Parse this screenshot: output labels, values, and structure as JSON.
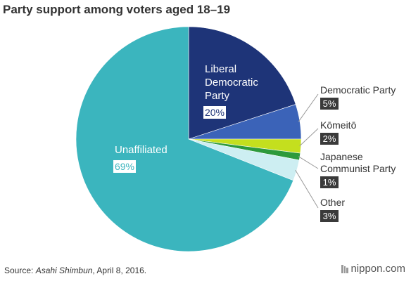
{
  "title": "Party support among voters aged 18–19",
  "source": {
    "prefix": "Source: ",
    "publication": "Asahi Shimbun",
    "suffix": ", April 8, 2016."
  },
  "brand": "nippon.com",
  "chart_data": {
    "type": "pie",
    "title": "Party support among voters aged 18–19",
    "start_angle_deg": 0,
    "direction": "clockwise",
    "slices": [
      {
        "label": "Liberal Democratic Party",
        "lines": [
          "Liberal",
          "Democratic",
          "Party"
        ],
        "value": 20,
        "display": "20%",
        "color": "#1e3478",
        "label_pos": "inside"
      },
      {
        "label": "Democratic Party",
        "lines": [
          "Democratic Party"
        ],
        "value": 5,
        "display": "5%",
        "color": "#3b63b8",
        "label_pos": "outside"
      },
      {
        "label": "Kōmeitō",
        "lines": [
          "Kōmeitō"
        ],
        "value": 2,
        "display": "2%",
        "color": "#c4df1e",
        "label_pos": "outside"
      },
      {
        "label": "Japanese Communist Party",
        "lines": [
          "Japanese",
          "Communist Party"
        ],
        "value": 1,
        "display": "1%",
        "color": "#2e9a3c",
        "label_pos": "outside"
      },
      {
        "label": "Other",
        "lines": [
          "Other"
        ],
        "value": 3,
        "display": "3%",
        "color": "#cdeef2",
        "label_pos": "outside"
      },
      {
        "label": "Unaffiliated",
        "lines": [
          "Unaffiliated"
        ],
        "value": 69,
        "display": "69%",
        "color": "#3bb5be",
        "label_pos": "inside"
      }
    ]
  }
}
